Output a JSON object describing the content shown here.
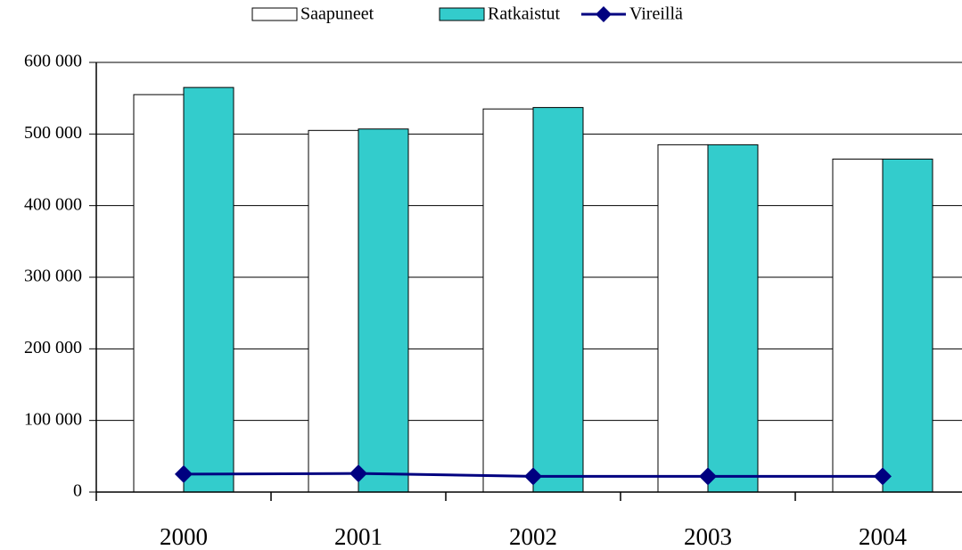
{
  "chart_data": {
    "type": "bar",
    "categories": [
      "2000",
      "2001",
      "2002",
      "2003",
      "2004"
    ],
    "series": [
      {
        "name": "Saapuneet",
        "type": "bar",
        "color": "#ffffff",
        "values": [
          555000,
          505000,
          535000,
          485000,
          465000
        ]
      },
      {
        "name": "Ratkaistut",
        "type": "bar",
        "color": "#33cccc",
        "values": [
          565000,
          507000,
          537000,
          485000,
          465000
        ]
      },
      {
        "name": "Vireillä",
        "type": "line",
        "color": "#000080",
        "values": [
          25000,
          26000,
          22000,
          22000,
          22000
        ]
      }
    ],
    "ylim": [
      0,
      600000
    ],
    "yticks": [
      0,
      {
        "value": 100000,
        "label": "100 000"
      },
      {
        "value": 200000,
        "label": "200 000"
      },
      {
        "value": 300000,
        "label": "300 000"
      },
      {
        "value": 400000,
        "label": "400 000"
      },
      {
        "value": 500000,
        "label": "500 000"
      },
      {
        "value": 600000,
        "label": "600 000"
      }
    ],
    "grid": true,
    "legend": "top"
  }
}
